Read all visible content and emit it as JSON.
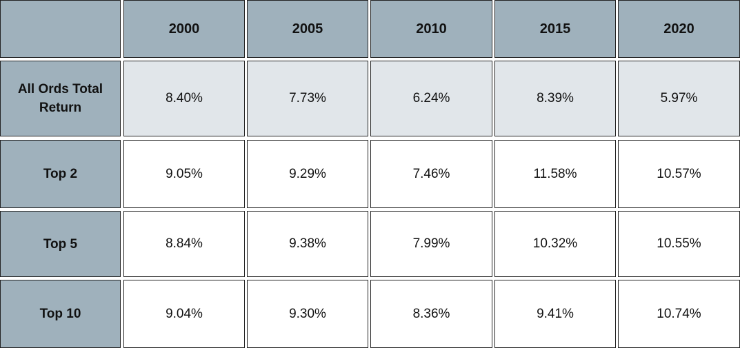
{
  "chart_data": {
    "type": "table",
    "columns": [
      "2000",
      "2005",
      "2010",
      "2015",
      "2020"
    ],
    "rows": [
      {
        "label": "All Ords Total Return",
        "values": [
          "8.40%",
          "7.73%",
          "6.24%",
          "8.39%",
          "5.97%"
        ],
        "numeric": [
          8.4,
          7.73,
          6.24,
          8.39,
          5.97
        ]
      },
      {
        "label": "Top 2",
        "values": [
          "9.05%",
          "9.29%",
          "7.46%",
          "11.58%",
          "10.57%"
        ],
        "numeric": [
          9.05,
          9.29,
          7.46,
          11.58,
          10.57
        ]
      },
      {
        "label": "Top 5",
        "values": [
          "8.84%",
          "9.38%",
          "7.99%",
          "10.32%",
          "10.55%"
        ],
        "numeric": [
          8.84,
          9.38,
          7.99,
          10.32,
          10.55
        ]
      },
      {
        "label": "Top 10",
        "values": [
          "9.04%",
          "9.30%",
          "8.36%",
          "9.41%",
          "10.74%"
        ],
        "numeric": [
          9.04,
          9.3,
          8.36,
          9.41,
          10.74
        ]
      }
    ]
  },
  "colors": {
    "header_bg": "#9fb1bc",
    "highlight_row_bg": "#e1e6ea",
    "cell_bg": "#ffffff",
    "border": "#222222",
    "text": "#111111"
  }
}
